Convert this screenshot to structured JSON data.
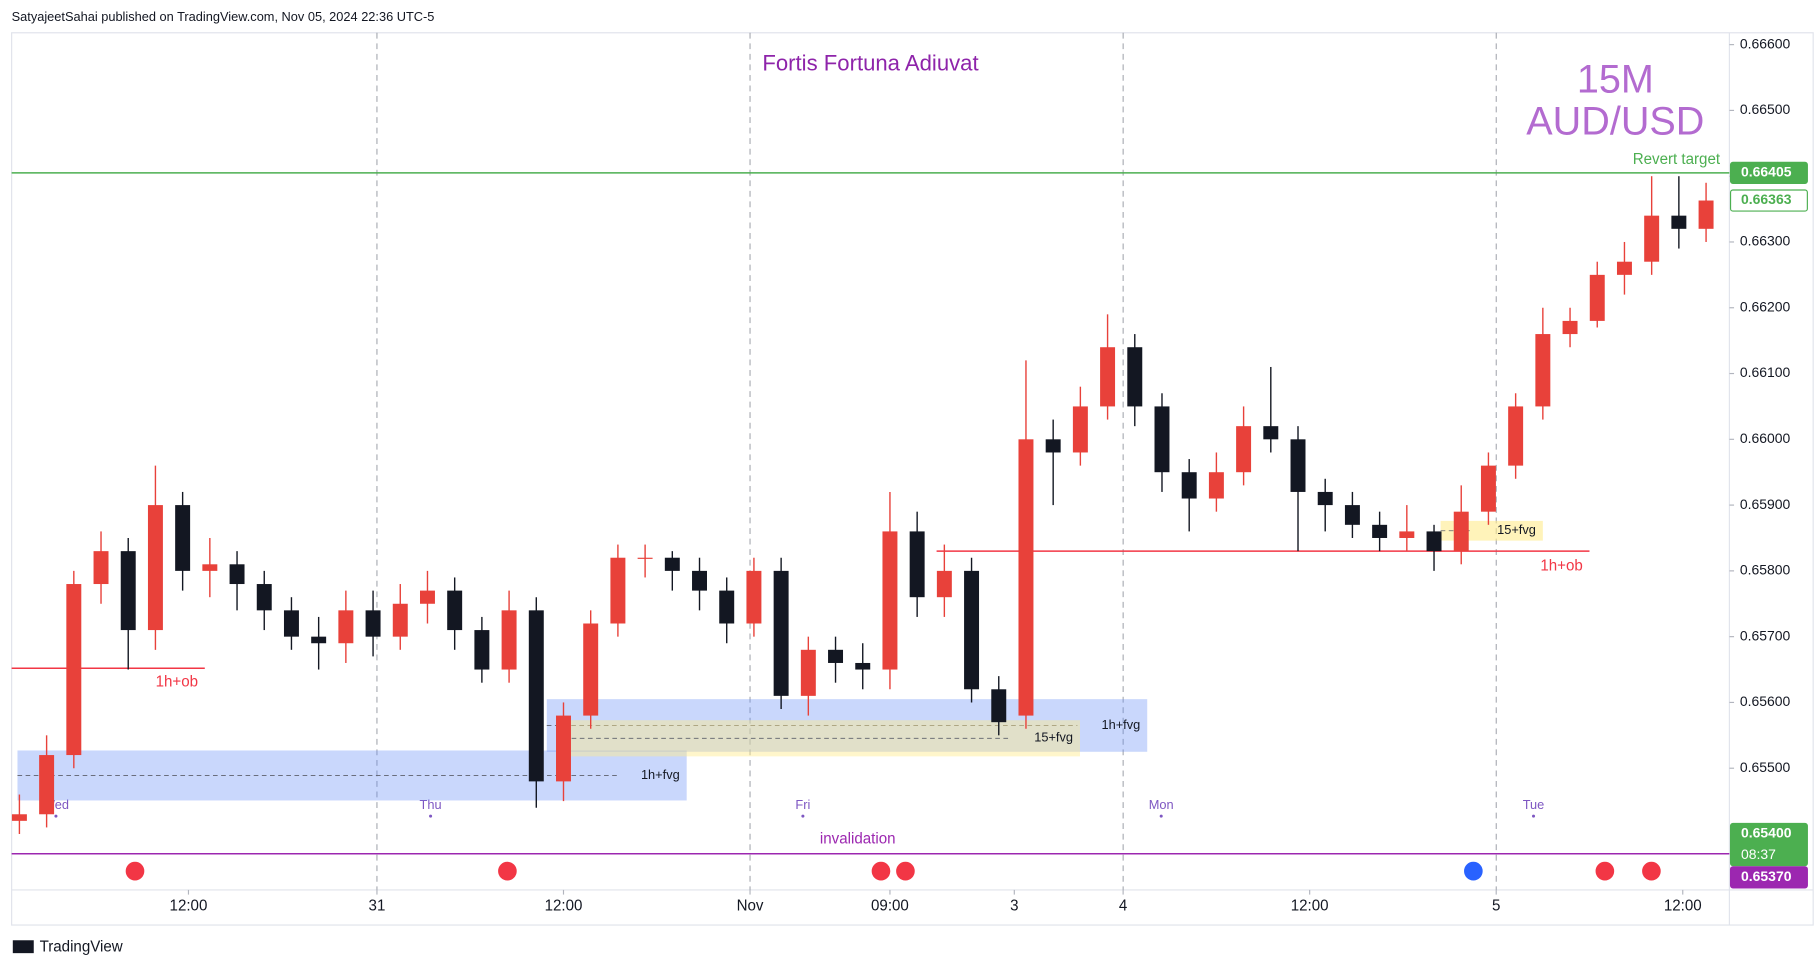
{
  "header": "SatyajeetSahai published on TradingView.com, Nov 05, 2024 22:36 UTC-5",
  "footer": "TradingView",
  "chart_data": {
    "type": "candlestick",
    "title": "Fortis Fortuna Adiuvat",
    "timeframe": "15M",
    "symbol": "AUD/USD",
    "up_color": "#e8413a",
    "down_color": "#131722",
    "x": [
      2,
      9,
      16,
      23,
      30,
      37,
      44,
      51,
      58,
      65,
      72,
      79,
      86,
      93,
      100,
      107,
      114,
      121,
      128,
      135,
      142,
      149,
      156,
      163,
      170,
      177,
      184,
      191,
      198,
      205,
      212,
      219,
      226,
      233,
      240,
      247,
      254,
      261,
      268,
      275,
      282,
      289,
      296,
      303,
      310,
      317,
      324,
      331,
      338,
      345,
      352,
      359,
      366,
      373,
      380,
      387,
      394,
      401,
      408,
      415,
      422,
      429,
      436
    ],
    "open": [
      0.6542,
      0.6543,
      0.6552,
      0.6578,
      0.6583,
      0.6571,
      0.659,
      0.658,
      0.6581,
      0.6578,
      0.6574,
      0.657,
      0.6569,
      0.6574,
      0.657,
      0.6575,
      0.6577,
      0.6571,
      0.6565,
      0.6574,
      0.6548,
      0.6558,
      0.6572,
      0.6582,
      0.6582,
      0.658,
      0.6577,
      0.6572,
      0.658,
      0.6561,
      0.6568,
      0.6566,
      0.6565,
      0.6586,
      0.6576,
      0.658,
      0.6562,
      0.6558,
      0.66,
      0.6598,
      0.6605,
      0.6614,
      0.6605,
      0.6595,
      0.6591,
      0.6595,
      0.6602,
      0.66,
      0.6592,
      0.659,
      0.6587,
      0.6585,
      0.6586,
      0.6583,
      0.6589,
      0.6596,
      0.6605,
      0.6616,
      0.6618,
      0.6625,
      0.6627,
      0.6634,
      0.6632
    ],
    "high": [
      0.6546,
      0.6555,
      0.658,
      0.6586,
      0.6585,
      0.6596,
      0.6592,
      0.6585,
      0.6583,
      0.658,
      0.6576,
      0.6573,
      0.6577,
      0.6577,
      0.6578,
      0.658,
      0.6579,
      0.6573,
      0.6577,
      0.6576,
      0.656,
      0.6574,
      0.6584,
      0.6584,
      0.6583,
      0.6582,
      0.6579,
      0.6582,
      0.6582,
      0.657,
      0.657,
      0.6569,
      0.6592,
      0.6589,
      0.6584,
      0.6582,
      0.6564,
      0.6612,
      0.6603,
      0.6608,
      0.6619,
      0.6616,
      0.6607,
      0.6597,
      0.6598,
      0.6605,
      0.6611,
      0.6602,
      0.6594,
      0.6592,
      0.6589,
      0.659,
      0.6587,
      0.6593,
      0.6598,
      0.6607,
      0.662,
      0.662,
      0.6627,
      0.663,
      0.664,
      0.664,
      0.6639
    ],
    "low": [
      0.654,
      0.6541,
      0.655,
      0.6575,
      0.6565,
      0.6568,
      0.6577,
      0.6576,
      0.6574,
      0.6571,
      0.6568,
      0.6565,
      0.6566,
      0.6567,
      0.6568,
      0.6572,
      0.6568,
      0.6563,
      0.6563,
      0.6544,
      0.6545,
      0.6556,
      0.657,
      0.6579,
      0.6577,
      0.6574,
      0.6569,
      0.657,
      0.6559,
      0.6558,
      0.6563,
      0.6562,
      0.6562,
      0.6573,
      0.6573,
      0.656,
      0.6555,
      0.6556,
      0.659,
      0.6596,
      0.6603,
      0.6602,
      0.6592,
      0.6586,
      0.6589,
      0.6593,
      0.6598,
      0.6583,
      0.6586,
      0.6585,
      0.6583,
      0.6583,
      0.658,
      0.6581,
      0.6587,
      0.6594,
      0.6603,
      0.6614,
      0.6617,
      0.6622,
      0.6625,
      0.6629,
      0.663
    ],
    "close": [
      0.6543,
      0.6552,
      0.6578,
      0.6583,
      0.6571,
      0.659,
      0.658,
      0.6581,
      0.6578,
      0.6574,
      0.657,
      0.6569,
      0.6574,
      0.657,
      0.6575,
      0.6577,
      0.6571,
      0.6565,
      0.6574,
      0.6548,
      0.6558,
      0.6572,
      0.6582,
      0.6582,
      0.658,
      0.6577,
      0.6572,
      0.658,
      0.6561,
      0.6568,
      0.6566,
      0.6565,
      0.6586,
      0.6576,
      0.658,
      0.6562,
      0.6557,
      0.66,
      0.6598,
      0.6605,
      0.6614,
      0.6605,
      0.6595,
      0.6591,
      0.6595,
      0.6602,
      0.66,
      0.6592,
      0.659,
      0.6587,
      0.6585,
      0.6586,
      0.6583,
      0.6589,
      0.6596,
      0.6605,
      0.6616,
      0.6618,
      0.6625,
      0.6627,
      0.6634,
      0.6632,
      0.66363
    ],
    "xlim": [
      0,
      442
    ],
    "ylim": [
      0.65315,
      0.66618
    ],
    "yticks": [
      {
        "value": 0.666,
        "label": "0.66600"
      },
      {
        "value": 0.665,
        "label": "0.66500"
      },
      {
        "value": 0.664,
        "label": "0.66400"
      },
      {
        "value": 0.663,
        "label": "0.66300"
      },
      {
        "value": 0.662,
        "label": "0.66200"
      },
      {
        "value": 0.661,
        "label": "0.66100"
      },
      {
        "value": 0.66,
        "label": "0.66000"
      },
      {
        "value": 0.659,
        "label": "0.65900"
      },
      {
        "value": 0.658,
        "label": "0.65800"
      },
      {
        "value": 0.657,
        "label": "0.65700"
      },
      {
        "value": 0.656,
        "label": "0.65600"
      },
      {
        "value": 0.655,
        "label": "0.65500"
      }
    ],
    "xticks": [
      {
        "value": 45.5,
        "label": "12:00"
      },
      {
        "value": 94,
        "label": "31"
      },
      {
        "value": 142,
        "label": "12:00"
      },
      {
        "value": 190,
        "label": "Nov"
      },
      {
        "value": 226,
        "label": "09:00"
      },
      {
        "value": 258,
        "label": "3"
      },
      {
        "value": 286,
        "label": "4"
      },
      {
        "value": 334,
        "label": "12:00"
      },
      {
        "value": 382,
        "label": "5"
      },
      {
        "value": 430,
        "label": "12:00"
      }
    ],
    "day_labels": [
      {
        "value": 11.4,
        "label": "Wed"
      },
      {
        "value": 107.8,
        "label": "Thu"
      },
      {
        "value": 203.6,
        "label": "Fri"
      },
      {
        "value": 295.8,
        "label": "Mon"
      },
      {
        "value": 391.6,
        "label": "Tue"
      }
    ],
    "separators": [
      94,
      190,
      286,
      382
    ],
    "levels": [
      {
        "value": 0.66405,
        "label": "Revert target",
        "color": "#4caf50"
      },
      {
        "value": 0.6537,
        "label": "invalidation",
        "color": "#9c27b0"
      },
      {
        "value": 0.65652,
        "label": "1h+ob",
        "color": "#f23645",
        "x": [
          0,
          49.7
        ]
      },
      {
        "value": 0.6583,
        "label": "1h+ob",
        "color": "#f23645",
        "x": [
          238,
          406
        ]
      }
    ],
    "zones": [
      {
        "label": "1h+fvg",
        "range": [
          0.65451,
          0.65527
        ],
        "x": [
          1.5,
          173.7
        ],
        "color": "rgba(100,140,245,0.35)"
      },
      {
        "label": "1h+fvg",
        "range": [
          0.65525,
          0.65605
        ],
        "x": [
          137.7,
          292.2
        ],
        "color": "rgba(100,140,245,0.35)"
      },
      {
        "label": "15+fvg",
        "range": [
          0.65518,
          0.65573
        ],
        "x": [
          142,
          274.9
        ],
        "color": "rgba(255,235,140,0.45)"
      },
      {
        "label": "15+fvg",
        "range": [
          0.65846,
          0.65876
        ],
        "x": [
          367.7,
          394
        ],
        "color": "rgba(255,235,140,0.6)"
      }
    ],
    "price_labels": [
      {
        "value": 0.66405,
        "label": "0.66405",
        "style": "filled",
        "color": "#4caf50"
      },
      {
        "value": 0.66363,
        "label": "0.66363",
        "style": "outline",
        "color": "#4caf50"
      },
      {
        "value": 0.654,
        "label": "0.65400",
        "style": "filled",
        "color": "#4caf50",
        "countdown": "08:37"
      },
      {
        "value": 0.6537,
        "label": "0.65370",
        "style": "filled",
        "color": "#9c27b0"
      }
    ]
  }
}
